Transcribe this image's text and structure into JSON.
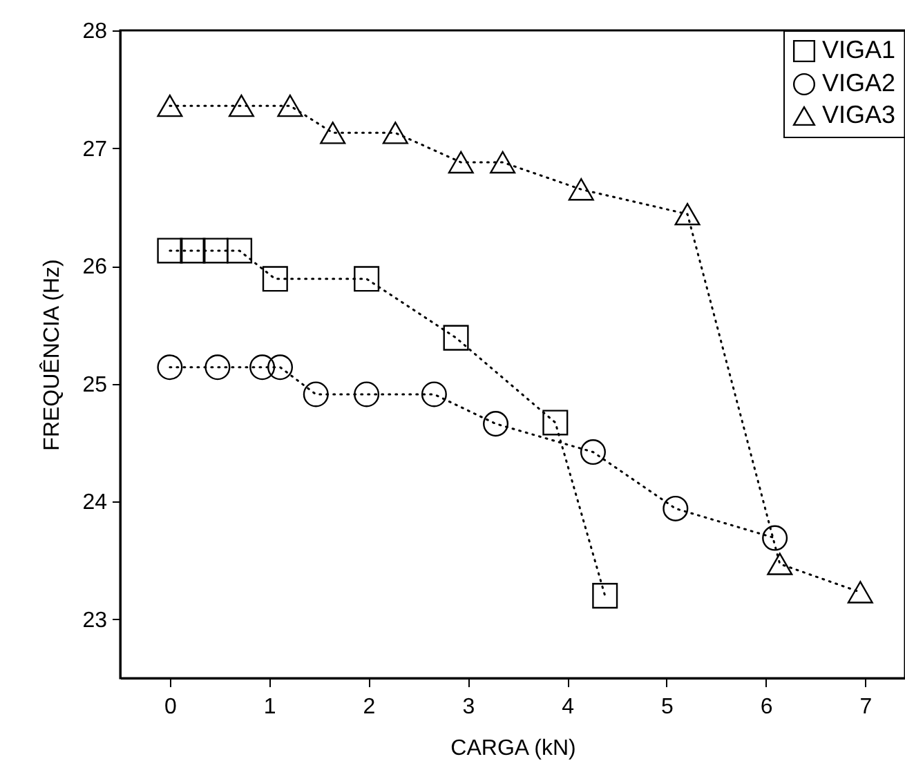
{
  "chart_data": {
    "type": "line",
    "xlabel": "CARGA (kN)",
    "ylabel": "FREQUÊNCIA (Hz)",
    "xlim": [
      -0.5,
      7.4
    ],
    "xticks": [
      0,
      1,
      2,
      3,
      4,
      5,
      6,
      7
    ],
    "ylim": [
      22.5,
      28
    ],
    "yticks": [
      23,
      24,
      25,
      26,
      27,
      28
    ],
    "line_style": "dotted",
    "legend": "top right",
    "grid": false,
    "series": [
      {
        "name": "VIGA1",
        "color": "#000000",
        "marker": "square",
        "x": [
          0,
          0.23,
          0.46,
          0.7,
          1.06,
          1.98,
          2.88,
          3.88,
          4.38
        ],
        "values": [
          26.13,
          26.13,
          26.13,
          26.13,
          25.89,
          25.89,
          25.39,
          24.67,
          23.2
        ]
      },
      {
        "name": "VIGA2",
        "color": "#000000",
        "marker": "circle",
        "x": [
          0,
          0.48,
          0.93,
          1.11,
          1.47,
          1.98,
          2.66,
          3.28,
          4.26,
          5.09,
          6.09
        ],
        "values": [
          25.14,
          25.14,
          25.14,
          25.14,
          24.91,
          24.91,
          24.91,
          24.66,
          24.42,
          23.94,
          23.69
        ]
      },
      {
        "name": "VIGA3",
        "color": "#000000",
        "marker": "triangle",
        "x": [
          0,
          0.72,
          1.21,
          1.64,
          2.27,
          2.93,
          3.35,
          4.14,
          5.21,
          6.14,
          6.95
        ],
        "values": [
          27.36,
          27.36,
          27.36,
          27.13,
          27.13,
          26.88,
          26.88,
          26.65,
          26.44,
          23.47,
          23.23
        ]
      }
    ]
  }
}
